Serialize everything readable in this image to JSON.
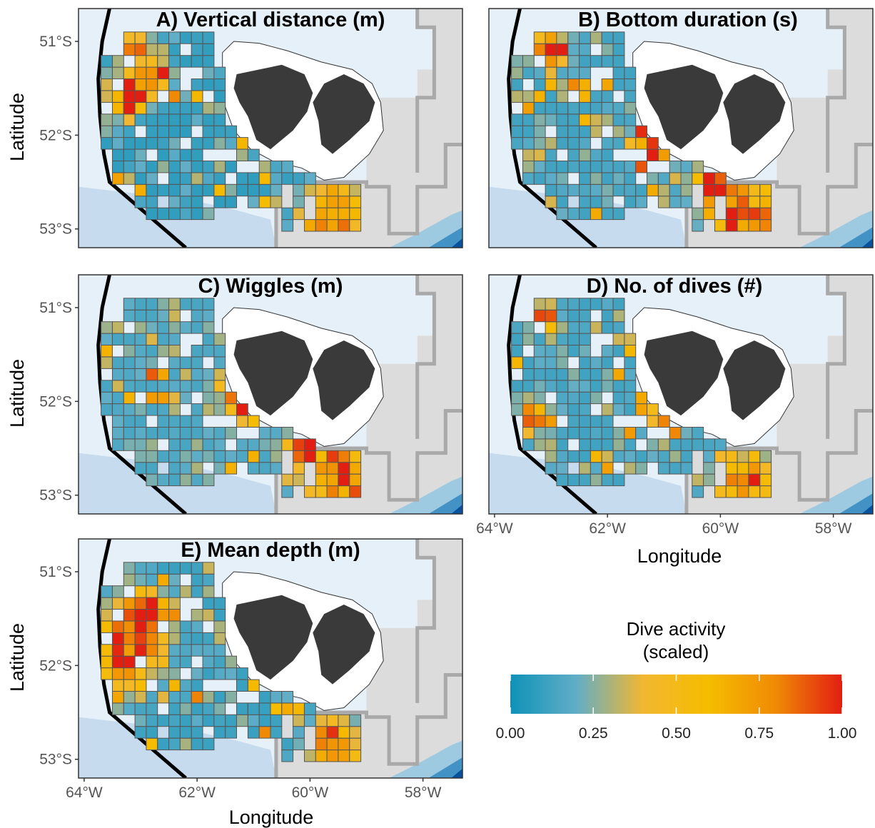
{
  "chart_data": {
    "type": "heatmap",
    "panels": [
      {
        "id": "A",
        "title": "A) Vertical distance (m)",
        "seed": 11,
        "hot": [
          [
            -62.9,
            -51.4,
            0.35
          ],
          [
            -63.3,
            -51.6,
            0.3
          ],
          [
            -59.6,
            -52.85,
            0.5
          ],
          [
            -63.1,
            -51.05,
            0.2
          ]
        ],
        "base": 0.08
      },
      {
        "id": "B",
        "title": "B) Bottom duration (s)",
        "seed": 23,
        "hot": [
          [
            -61.15,
            -52.1,
            0.35
          ],
          [
            -60.1,
            -52.55,
            0.35
          ],
          [
            -59.6,
            -52.85,
            0.5
          ],
          [
            -63.0,
            -51.1,
            0.25
          ]
        ],
        "base": 0.12
      },
      {
        "id": "C",
        "title": "C) Wiggles (m)",
        "seed": 37,
        "hot": [
          [
            -61.1,
            -52.0,
            0.35
          ],
          [
            -59.5,
            -52.8,
            0.5
          ],
          [
            -60.1,
            -52.5,
            0.3
          ],
          [
            -61.3,
            -51.8,
            0.25
          ]
        ],
        "base": 0.14
      },
      {
        "id": "D",
        "title": "D) No. of dives (#)",
        "seed": 51,
        "hot": [
          [
            -59.6,
            -52.85,
            0.45
          ],
          [
            -60.9,
            -52.1,
            0.3
          ],
          [
            -63.3,
            -52.15,
            0.25
          ],
          [
            -63.1,
            -51.1,
            0.2
          ]
        ],
        "base": 0.12
      },
      {
        "id": "E",
        "title": "E) Mean depth (m)",
        "seed": 67,
        "hot": [
          [
            -63.3,
            -51.85,
            0.6
          ],
          [
            -62.95,
            -51.45,
            0.4
          ],
          [
            -59.6,
            -52.85,
            0.4
          ]
        ],
        "base": 0.1
      }
    ],
    "xlabel": "Longitude",
    "ylabel": "Latitude",
    "xlim": [
      -64.1,
      -57.3
    ],
    "ylim": [
      -53.2,
      -50.65
    ],
    "x_ticks": [
      -64,
      -62,
      -60,
      -58
    ],
    "x_tick_labels": [
      "64°W",
      "62°W",
      "60°W",
      "58°W"
    ],
    "y_ticks": [
      -51,
      -52,
      -53
    ],
    "y_tick_labels": [
      "51°S",
      "52°S",
      "53°S"
    ],
    "cell_size_deg": [
      0.2,
      0.125
    ],
    "legend": {
      "title_line1": "Dive activity",
      "title_line2": "(scaled)",
      "ticks": [
        0.0,
        0.25,
        0.5,
        0.75,
        1.0
      ],
      "tick_labels": [
        "0.00",
        "0.25",
        "0.50",
        "0.75",
        "1.00"
      ],
      "colors": [
        "#0e92b8",
        "#62aec7",
        "#f2b730",
        "#f5bc00",
        "#f08a05",
        "#e21e12"
      ]
    },
    "colors": {
      "ocean_shallow": "#e6f0f9",
      "ocean_mid": "#c7dbef",
      "ocean_deep": "#9ecae1",
      "ocean_deeper": "#4292c6",
      "ocean_deepest": "#08519c",
      "zone_fill": "#dcdcdc",
      "zone_line": "#a9a9a9",
      "land": "#3a3a3a",
      "cell_border": "#555555",
      "boundary_line": "#000000"
    }
  }
}
